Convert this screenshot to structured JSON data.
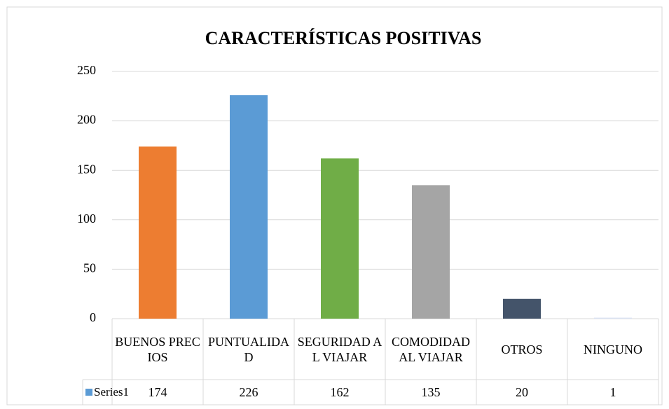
{
  "chart_data": {
    "type": "bar",
    "title": "CARACTERÍSTICAS POSITIVAS",
    "categories": [
      "BUENOS PRECIOS",
      "PUNTUALIDAD",
      "SEGURIDAD AL VIAJAR",
      "COMODIDAD AL VIAJAR",
      "OTROS",
      "NINGUNO"
    ],
    "series": [
      {
        "name": "Series1",
        "color": "#5b9bd5",
        "values": [
          174,
          226,
          162,
          135,
          20,
          1
        ],
        "point_colors": [
          "#ed7d31",
          "#5b9bd5",
          "#70ad47",
          "#a5a5a5",
          "#44546a",
          "#dae3f3"
        ]
      }
    ],
    "ylim": [
      0,
      250
    ],
    "yticks": [
      0,
      50,
      100,
      150,
      200,
      250
    ],
    "grid": true,
    "data_table": true
  }
}
